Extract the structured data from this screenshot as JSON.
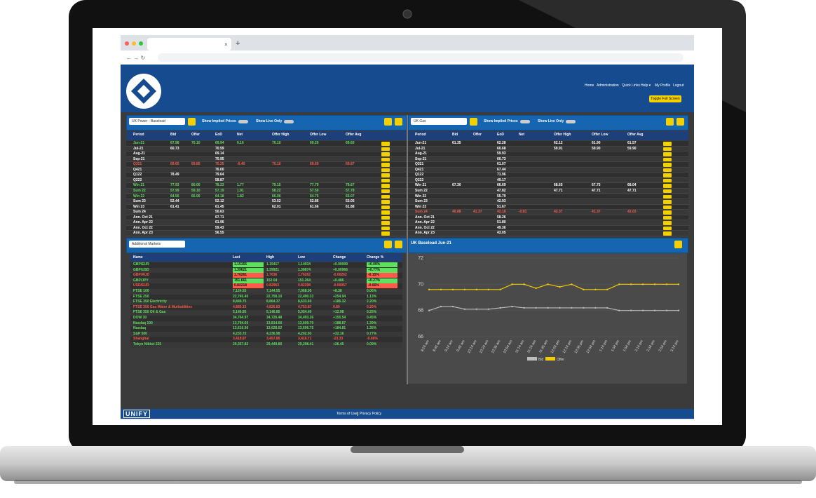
{
  "browser": {
    "new_tab": "+"
  },
  "header": {
    "nav": [
      "Home",
      "Administration",
      "Quick Links",
      "Help ▾",
      "My Profile",
      "Logout"
    ],
    "toggle": "Toggle Full Screen"
  },
  "panels": [
    {
      "select": "UK Power - Baseload",
      "implied": "Show Implied Prices",
      "live": "Show Live Only",
      "columns": [
        "Period",
        "Bid",
        "Offer",
        "EoD",
        "Net",
        "Offer High",
        "Offer Low",
        "Offer Avg"
      ],
      "rows": [
        {
          "values": [
            "Jun-21",
            "67.98",
            "70.10",
            "69.94",
            "0.16",
            "70.10",
            "69.20",
            "69.60"
          ],
          "color": "#5fe05f"
        },
        {
          "values": [
            "Jul-21",
            "60.73",
            null,
            "70.59",
            null,
            null,
            null,
            null
          ],
          "color": "#ffffff"
        },
        {
          "values": [
            "Aug-21",
            null,
            null,
            "69.14",
            null,
            null,
            null,
            null
          ],
          "color": "#ffffff"
        },
        {
          "values": [
            "Sep-21",
            null,
            null,
            "70.95",
            null,
            null,
            null,
            null
          ],
          "color": "#ffffff"
        },
        {
          "values": [
            "Q321",
            "69.65",
            "69.85",
            "70.25",
            "-0.40",
            "70.10",
            "69.69",
            "69.87"
          ],
          "color": "#ff5a4a"
        },
        {
          "values": [
            "Q421",
            null,
            null,
            "76.00",
            null,
            null,
            null,
            null
          ],
          "color": "#ffffff"
        },
        {
          "values": [
            "Q122",
            "78.49",
            null,
            "79.64",
            null,
            null,
            null,
            null
          ],
          "color": "#ffffff"
        },
        {
          "values": [
            "Q222",
            null,
            null,
            "58.87",
            null,
            null,
            null,
            null
          ],
          "color": "#ffffff"
        },
        {
          "values": [
            "Win 21",
            "77.93",
            "80.00",
            "78.23",
            "1.77",
            "79.15",
            "77.79",
            "78.67"
          ],
          "color": "#5fe05f"
        },
        {
          "values": [
            "Sum 22",
            "57.99",
            "59.10",
            "57.19",
            "1.91",
            "58.22",
            "57.50",
            "57.78"
          ],
          "color": "#5fe05f"
        },
        {
          "values": [
            "Win 22",
            "64.56",
            "66.00",
            "64.18",
            "1.82",
            "66.06",
            "64.75",
            "65.07"
          ],
          "color": "#5fe05f"
        },
        {
          "values": [
            "Sum 23",
            "52.44",
            null,
            "52.12",
            null,
            "53.52",
            "52.86",
            "53.05"
          ],
          "color": "#ffffff"
        },
        {
          "values": [
            "Win 23",
            "61.41",
            null,
            "61.45",
            null,
            "62.01",
            "61.66",
            "61.88"
          ],
          "color": "#ffffff"
        },
        {
          "values": [
            "Sum 24",
            null,
            null,
            "50.63",
            null,
            null,
            null,
            null
          ],
          "color": "#ffffff"
        },
        {
          "values": [
            "Ann. Oct 21",
            null,
            null,
            "67.71",
            null,
            null,
            null,
            null
          ],
          "color": "#ffffff"
        },
        {
          "values": [
            "Ann. Apr 22",
            null,
            null,
            "61.96",
            null,
            null,
            null,
            null
          ],
          "color": "#ffffff"
        },
        {
          "values": [
            "Ann. Oct 22",
            null,
            null,
            "59.43",
            null,
            null,
            null,
            null
          ],
          "color": "#ffffff"
        },
        {
          "values": [
            "Ann. Apr 23",
            null,
            null,
            "56.55",
            null,
            null,
            null,
            null
          ],
          "color": "#ffffff"
        }
      ]
    },
    {
      "select": "UK Gas",
      "implied": "Show Implied Prices",
      "live": "Show Live Only",
      "columns": [
        "Period",
        "Bid",
        "Offer",
        "EoD",
        "Net",
        "Offer High",
        "Offer Low",
        "Offer Avg"
      ],
      "rows": [
        {
          "values": [
            "Jun-21",
            "61.35",
            null,
            "62.28",
            null,
            "62.12",
            "61.90",
            "61.57"
          ],
          "color": "#ffffff"
        },
        {
          "values": [
            "Jul-21",
            null,
            null,
            "60.68",
            null,
            "59.91",
            "59.90",
            "59.90"
          ],
          "color": "#ffffff"
        },
        {
          "values": [
            "Aug-21",
            null,
            null,
            "59.93",
            null,
            null,
            null,
            null
          ],
          "color": "#ffffff"
        },
        {
          "values": [
            "Sep-21",
            null,
            null,
            "60.73",
            null,
            null,
            null,
            null
          ],
          "color": "#ffffff"
        },
        {
          "values": [
            "Q321",
            null,
            null,
            "61.07",
            null,
            null,
            null,
            null
          ],
          "color": "#ffffff"
        },
        {
          "values": [
            "Q421",
            null,
            null,
            "67.44",
            null,
            null,
            null,
            null
          ],
          "color": "#ffffff"
        },
        {
          "values": [
            "Q122",
            null,
            null,
            "71.96",
            null,
            null,
            null,
            null
          ],
          "color": "#ffffff"
        },
        {
          "values": [
            "Q222",
            null,
            null,
            "49.17",
            null,
            null,
            null,
            null
          ],
          "color": "#ffffff"
        },
        {
          "values": [
            "Win 21",
            "67.30",
            null,
            "66.69",
            null,
            "68.65",
            "67.75",
            "68.04"
          ],
          "color": "#ffffff"
        },
        {
          "values": [
            "Sum 22",
            null,
            null,
            "47.82",
            null,
            "47.71",
            "47.71",
            "47.71"
          ],
          "color": "#ffffff"
        },
        {
          "values": [
            "Win 22",
            null,
            null,
            "55.79",
            null,
            null,
            null,
            null
          ],
          "color": "#ffffff"
        },
        {
          "values": [
            "Sum 23",
            null,
            null,
            "42.93",
            null,
            null,
            null,
            null
          ],
          "color": "#ffffff"
        },
        {
          "values": [
            "Win 23",
            null,
            null,
            "51.67",
            null,
            null,
            null,
            null
          ],
          "color": "#ffffff"
        },
        {
          "values": [
            "Sum 24",
            "40.88",
            "41.37",
            "42.18",
            "-0.81",
            "42.37",
            "41.37",
            "42.03"
          ],
          "color": "#ff5a4a"
        },
        {
          "values": [
            "Ann. Oct 21",
            null,
            null,
            "58.26",
            null,
            null,
            null,
            null
          ],
          "color": "#ffffff"
        },
        {
          "values": [
            "Ann. Apr 22",
            null,
            null,
            "51.80",
            null,
            null,
            null,
            null
          ],
          "color": "#ffffff"
        },
        {
          "values": [
            "Ann. Oct 22",
            null,
            null,
            "49.36",
            null,
            null,
            null,
            null
          ],
          "color": "#ffffff"
        },
        {
          "values": [
            "Ann. Apr 23",
            null,
            null,
            "43.05",
            null,
            null,
            null,
            null
          ],
          "color": "#ffffff"
        }
      ]
    }
  ],
  "markets": {
    "select": "Additional Markets",
    "columns": [
      "Name",
      "Last",
      "High",
      "Low",
      "Change",
      "Change %"
    ],
    "rows": [
      {
        "values": [
          "GBP/EUR",
          "1.15155",
          "1.15417",
          "1.14934",
          "+0.00099",
          "+0.09%"
        ],
        "color": "#5fe05f"
      },
      {
        "values": [
          "GBP/USD",
          "1.39621",
          "1.39921",
          "1.38874",
          "+0.00966",
          "+0.77%"
        ],
        "color": "#5fe05f"
      },
      {
        "values": [
          "GBP/AUD",
          "1.76261",
          "1.7636",
          "1.76262",
          "-0.00262",
          "-0.15%"
        ],
        "color": "#ff5a4a"
      },
      {
        "values": [
          "GBP/JPY",
          "151.661",
          "152.04",
          "151.264",
          "+0.486",
          "+0.27%"
        ],
        "color": "#5fe05f"
      },
      {
        "values": [
          "USD/EUR",
          "0.82218",
          "0.82963",
          "0.82298",
          "-0.00057",
          "-0.66%"
        ],
        "color": "#ff5a4a"
      },
      {
        "values": [
          "FTSE 100",
          "7,124.55",
          "7,144.55",
          "7,068.05",
          "+8.38",
          "0.06%"
        ],
        "color": "#5fe05f"
      },
      {
        "values": [
          "FTSE 250",
          "22,745.40",
          "22,758.10",
          "22,490.33",
          "+254.94",
          "1.13%"
        ],
        "color": "#5fe05f"
      },
      {
        "values": [
          "FTSE 350 Electricity",
          "8,849.75",
          "8,864.37",
          "8,633.60",
          "+186.32",
          "2.20%"
        ],
        "color": "#5fe05f"
      },
      {
        "values": [
          "FTSE 350 Gas Water & Multiutilities",
          "4,885.15",
          "4,826.83",
          "4,753.87",
          "9.80",
          "0.20%"
        ],
        "color": "#ff5a4a"
      },
      {
        "values": [
          "FTSE 350 Oil & Gas",
          "5,146.85",
          "5,146.85",
          "5,054.40",
          "+12.98",
          "0.25%"
        ],
        "color": "#5fe05f"
      },
      {
        "values": [
          "DOW 30",
          "34,764.97",
          "34,726.48",
          "34,493.26",
          "+155.54",
          "0.45%"
        ],
        "color": "#5fe05f"
      },
      {
        "values": [
          "Nasdaq 100",
          "13,794.60",
          "13,814.66",
          "13,609.70",
          "+188.87",
          "1.39%"
        ],
        "color": "#5fe05f"
      },
      {
        "values": [
          "Nasdaq",
          "13,616.96",
          "13,628.62",
          "13,606.75",
          "+184.81",
          "1.35%"
        ],
        "color": "#5fe05f"
      },
      {
        "values": [
          "S&P 500",
          "4,233.72",
          "4,236.98",
          "4,202.93",
          "+32.16",
          "0.77%"
        ],
        "color": "#5fe05f"
      },
      {
        "values": [
          "Shanghai",
          "3,418.87",
          "3,457.85",
          "3,416.71",
          "-23.33",
          "-0.66%"
        ],
        "color": "#ff5a4a"
      },
      {
        "values": [
          "Tokyo Nikkei 225",
          "29,357.82",
          "29,449.86",
          "29,298.41",
          "+26.45",
          "0.09%"
        ],
        "color": "#5fe05f"
      }
    ]
  },
  "chart_data": {
    "type": "line",
    "title": "UK Baseload Jun-21",
    "categories": [
      "8:24 am",
      "8:45 am",
      "9:14 am",
      "9:45 am",
      "10:14 am",
      "10:24 am",
      "10:35 am",
      "10:54 am",
      "11:14 am",
      "11:24 am",
      "11:45 am",
      "12:04 pm",
      "12:14 pm",
      "12:35 pm",
      "12:54 pm",
      "1:14 pm",
      "1:34 pm",
      "1:54 pm",
      "2:14 pm",
      "2:34 pm",
      "2:54 pm",
      "3:14 pm"
    ],
    "series": [
      {
        "name": "Bid",
        "color": "#bdbdbd",
        "values": [
          68.0,
          68.3,
          68.3,
          68.1,
          68.1,
          68.1,
          68.2,
          68.3,
          68.2,
          68.2,
          68.2,
          68.2,
          68.2,
          68.2,
          68.2,
          68.2,
          68.0,
          68.0,
          68.0,
          68.0,
          68.0,
          68.0
        ]
      },
      {
        "name": "Offer",
        "color": "#f2cc00",
        "values": [
          69.6,
          69.6,
          69.6,
          69.6,
          69.6,
          69.6,
          69.6,
          70.0,
          70.0,
          69.7,
          70.0,
          69.8,
          70.0,
          69.6,
          69.6,
          69.6,
          70.0,
          70.0,
          70.0,
          70.0,
          70.0,
          70.0
        ]
      }
    ],
    "ylim": [
      66,
      72
    ],
    "yticks": [
      66,
      68,
      70,
      72
    ],
    "grid": true
  },
  "footer": {
    "logo": "UNIFY",
    "links": [
      "Terms of Use",
      "Privacy Policy"
    ]
  }
}
